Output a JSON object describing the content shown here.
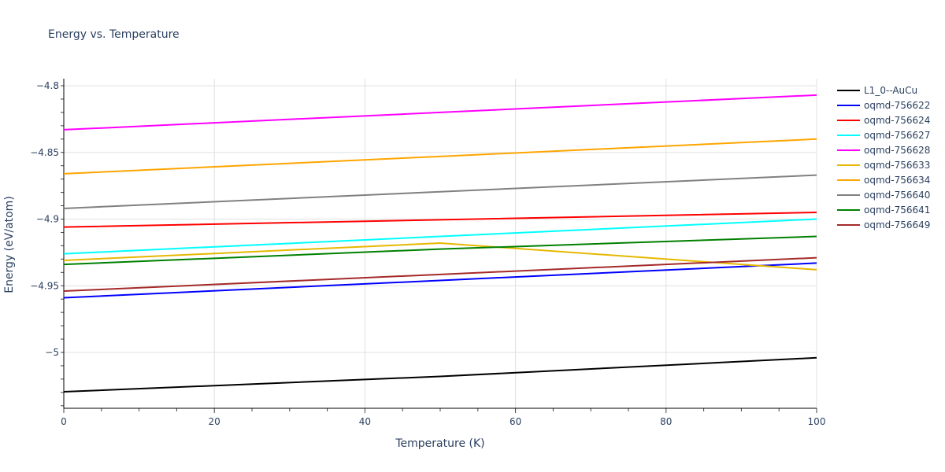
{
  "chart_data": {
    "type": "line",
    "title": "Energy vs. Temperature",
    "xlabel": "Temperature (K)",
    "ylabel": "Energy (eV/atom)",
    "xlim": [
      0,
      100
    ],
    "ylim": [
      -5.043,
      -4.793
    ],
    "x_ticks": [
      0,
      20,
      40,
      60,
      80,
      100
    ],
    "y_ticks": [
      -4.8,
      -4.85,
      -4.9,
      -4.95,
      -5.0
    ],
    "y_tick_labels": [
      "−4.8",
      "−4.85",
      "−4.9",
      "−4.95",
      "−5"
    ],
    "grid": true,
    "legend_position": "right",
    "x": [
      0,
      50,
      100
    ],
    "series": [
      {
        "name": "L1_0--AuCu",
        "color": "#000000",
        "values": [
          -5.0295,
          -5.018,
          -5.004
        ]
      },
      {
        "name": "oqmd-756622",
        "color": "#0000ff",
        "values": [
          -4.959,
          -4.946,
          -4.933
        ]
      },
      {
        "name": "oqmd-756624",
        "color": "#ff0000",
        "values": [
          -4.906,
          -4.9005,
          -4.895
        ]
      },
      {
        "name": "oqmd-756627",
        "color": "#00ffff",
        "values": [
          -4.926,
          -4.913,
          -4.9
        ]
      },
      {
        "name": "oqmd-756628",
        "color": "#ff00ff",
        "values": [
          -4.833,
          -4.82,
          -4.807
        ]
      },
      {
        "name": "oqmd-756633",
        "color": "#e6b800",
        "values": [
          -4.931,
          -4.918,
          -4.938
        ]
      },
      {
        "name": "oqmd-756634",
        "color": "#ffa500",
        "values": [
          -4.866,
          -4.853,
          -4.84
        ]
      },
      {
        "name": "oqmd-756640",
        "color": "#808080",
        "values": [
          -4.892,
          -4.8795,
          -4.867
        ]
      },
      {
        "name": "oqmd-756641",
        "color": "#008000",
        "values": [
          -4.934,
          -4.9225,
          -4.913
        ]
      },
      {
        "name": "oqmd-756649",
        "color": "#a52a2a",
        "values": [
          -4.954,
          -4.9415,
          -4.929
        ]
      }
    ]
  }
}
